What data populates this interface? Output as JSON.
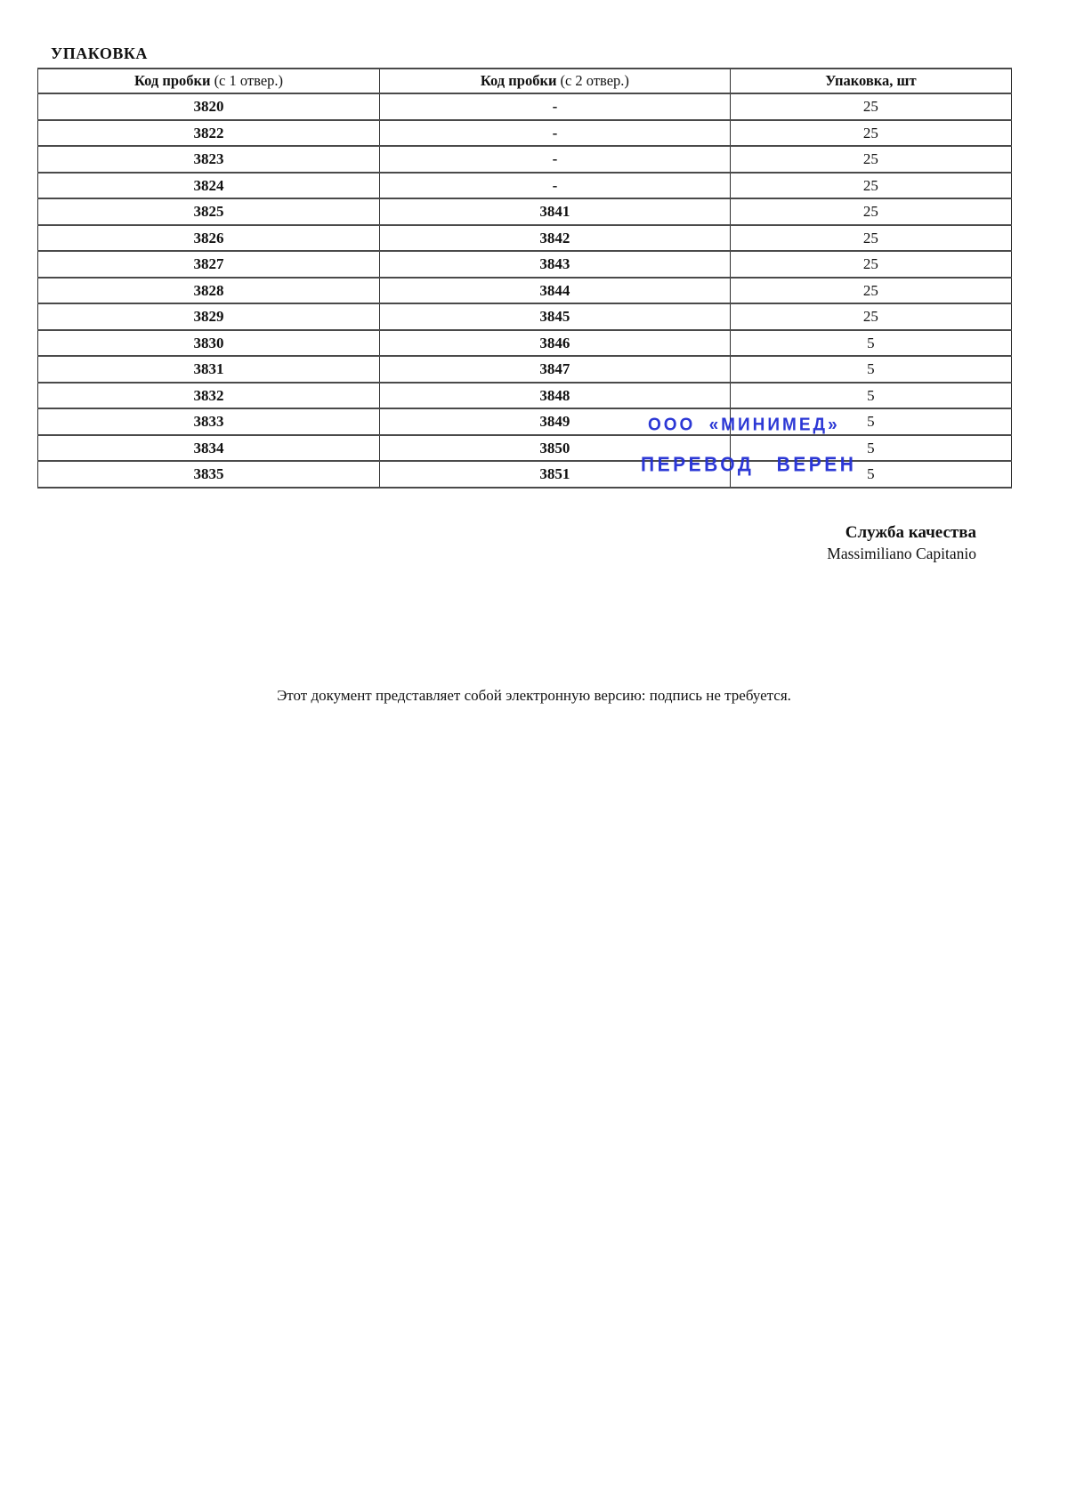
{
  "page": {
    "title": "УПАКОВКА",
    "footer_note": "Этот документ представляет собой электронную версию: подпись не требуется."
  },
  "table": {
    "headers": [
      {
        "bold": "Код пробки",
        "normal": "(с 1 отвер.)"
      },
      {
        "bold": "Код пробки",
        "normal": "(с 2 отвер.)"
      },
      {
        "bold": "Упаковка, шт",
        "normal": ""
      }
    ],
    "rows": [
      [
        "3820",
        "-",
        "25"
      ],
      [
        "3822",
        "-",
        "25"
      ],
      [
        "3823",
        "-",
        "25"
      ],
      [
        "3824",
        "-",
        "25"
      ],
      [
        "3825",
        "3841",
        "25"
      ],
      [
        "3826",
        "3842",
        "25"
      ],
      [
        "3827",
        "3843",
        "25"
      ],
      [
        "3828",
        "3844",
        "25"
      ],
      [
        "3829",
        "3845",
        "25"
      ],
      [
        "3830",
        "3846",
        "5"
      ],
      [
        "3831",
        "3847",
        "5"
      ],
      [
        "3832",
        "3848",
        "5"
      ],
      [
        "3833",
        "3849",
        "5"
      ],
      [
        "3834",
        "3850",
        "5"
      ],
      [
        "3835",
        "3851",
        "5"
      ]
    ]
  },
  "stamp": {
    "company": "ООО «МИНИМЕД»",
    "translation": "ПЕРЕВОД ВЕРЕН",
    "color": "#2430d4"
  },
  "signature": {
    "title": "Служба качества",
    "name": "Massimiliano Capitanio"
  }
}
